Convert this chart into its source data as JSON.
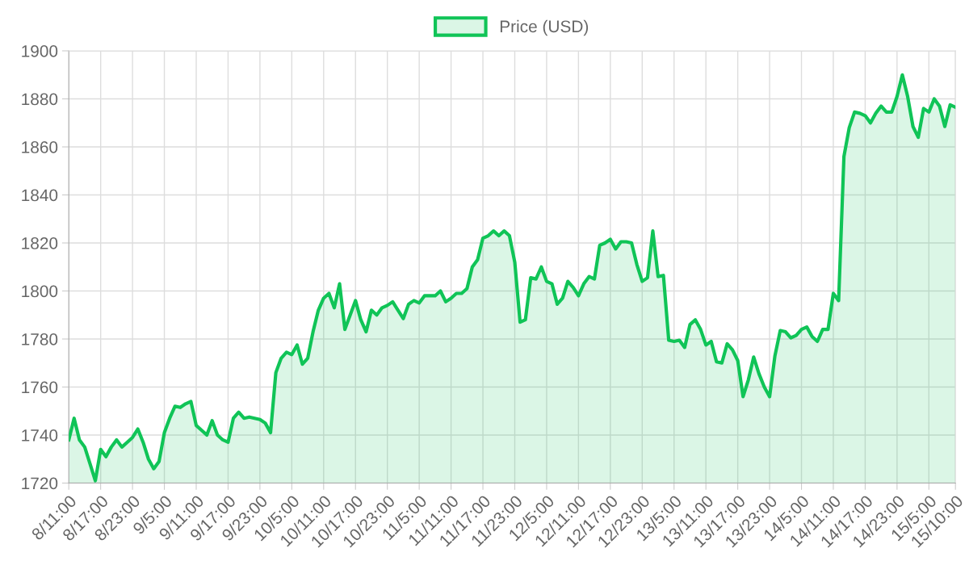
{
  "chart_data": {
    "type": "area",
    "categories": [
      "8/11:00",
      null,
      null,
      null,
      null,
      null,
      "8/17:00",
      null,
      null,
      null,
      null,
      null,
      "8/23:00",
      null,
      null,
      null,
      null,
      null,
      "9/5:00",
      null,
      null,
      null,
      null,
      null,
      "9/11:00",
      null,
      null,
      null,
      null,
      null,
      "9/17:00",
      null,
      null,
      null,
      null,
      null,
      "9/23:00",
      null,
      null,
      null,
      null,
      null,
      "10/5:00",
      null,
      null,
      null,
      null,
      null,
      "10/11:00",
      null,
      null,
      null,
      null,
      null,
      "10/17:00",
      null,
      null,
      null,
      null,
      null,
      "10/23:00",
      null,
      null,
      null,
      null,
      null,
      "11/5:00",
      null,
      null,
      null,
      null,
      null,
      "11/11:00",
      null,
      null,
      null,
      null,
      null,
      "11/17:00",
      null,
      null,
      null,
      null,
      null,
      "11/23:00",
      null,
      null,
      null,
      null,
      null,
      "12/5:00",
      null,
      null,
      null,
      null,
      null,
      "12/11:00",
      null,
      null,
      null,
      null,
      null,
      "12/17:00",
      null,
      null,
      null,
      null,
      null,
      "12/23:00",
      null,
      null,
      null,
      null,
      null,
      "13/5:00",
      null,
      null,
      null,
      null,
      null,
      "13/11:00",
      null,
      null,
      null,
      null,
      null,
      "13/17:00",
      null,
      null,
      null,
      null,
      null,
      "13/23:00",
      null,
      null,
      null,
      null,
      null,
      "14/5:00",
      null,
      null,
      null,
      null,
      null,
      "14/11:00",
      null,
      null,
      null,
      null,
      null,
      "14/17:00",
      null,
      null,
      null,
      null,
      null,
      "14/23:00",
      null,
      null,
      null,
      null,
      null,
      "15/5:00",
      null,
      null,
      null,
      null,
      "15/10:00"
    ],
    "series": [
      {
        "name": "Price (USD)",
        "color": "#10c457",
        "values": [
          1738,
          1747,
          1738,
          1735,
          1728,
          1721,
          1734,
          1731,
          1735,
          1738,
          1735,
          1737,
          1739,
          1742.5,
          1737,
          1730,
          1726,
          1729,
          1741,
          1747,
          1752,
          1751.5,
          1753,
          1754,
          1744,
          1742,
          1740,
          1746,
          1740,
          1738,
          1737,
          1747,
          1749.5,
          1747,
          1747.5,
          1747,
          1746.5,
          1745,
          1741,
          1766,
          1772,
          1774.5,
          1773.5,
          1777.5,
          1769.5,
          1772,
          1783,
          1792,
          1797,
          1799,
          1793,
          1803,
          1784,
          1790,
          1796,
          1788,
          1783,
          1792,
          1790,
          1793,
          1794,
          1795.5,
          1792,
          1788.5,
          1794.5,
          1796,
          1795,
          1798,
          1798,
          1798,
          1800,
          1795.5,
          1797,
          1799,
          1799,
          1801,
          1810,
          1813,
          1822,
          1823,
          1825,
          1823,
          1825,
          1823,
          1812,
          1787,
          1788,
          1805.5,
          1805,
          1810,
          1804,
          1803,
          1794.5,
          1797,
          1804,
          1801.5,
          1798,
          1803,
          1806,
          1805,
          1819,
          1820,
          1821.5,
          1817.5,
          1820.5,
          1820.5,
          1820,
          1811,
          1804,
          1805.5,
          1825,
          1806,
          1806.5,
          1779.5,
          1779,
          1779.5,
          1776.5,
          1786,
          1788,
          1784,
          1777.5,
          1779,
          1770.5,
          1770,
          1778,
          1775.5,
          1771,
          1756,
          1763,
          1772.5,
          1765.5,
          1760,
          1756,
          1773,
          1783.5,
          1783,
          1780.5,
          1781.5,
          1784,
          1785,
          1781,
          1779,
          1784,
          1784,
          1799,
          1796,
          1856,
          1868,
          1874.5,
          1874,
          1873,
          1870,
          1874,
          1877,
          1874.5,
          1874.5,
          1881,
          1890,
          1881,
          1868.5,
          1864,
          1876,
          1874.5,
          1880,
          1877,
          1868.5,
          1877.5,
          1876.5
        ]
      }
    ],
    "ylim": [
      1720,
      1900
    ],
    "yticks": [
      1720,
      1740,
      1760,
      1780,
      1800,
      1820,
      1840,
      1860,
      1880,
      1900
    ],
    "grid": true,
    "legend": "top",
    "marker": "none",
    "line_style": "solid"
  }
}
